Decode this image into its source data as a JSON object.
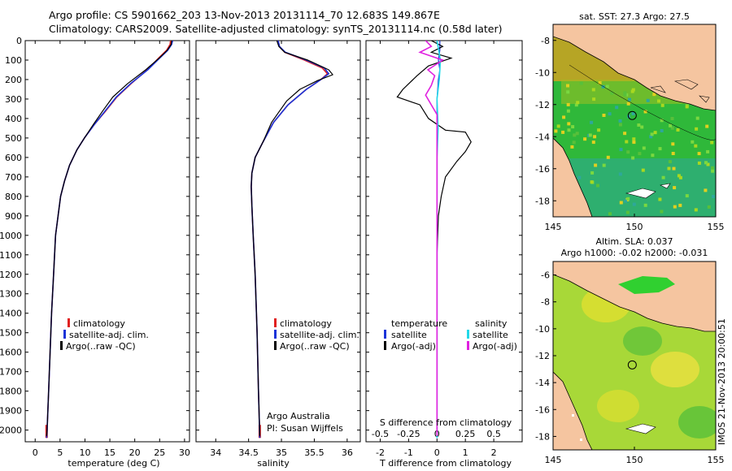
{
  "header": {
    "line1": "Argo profile: CS 5901662_203 13-Nov-2013 20131114_70 12.683S 149.867E",
    "line2": "Climatology: CARS2009. Satellite-adjusted climatology: synTS_20131114.nc (0.58d later)"
  },
  "side_label": "IMOS 21-Nov-2013 20:00:51",
  "colors": {
    "climatology": "#e02020",
    "satellite": "#1a33d8",
    "argo": "#000000",
    "sat_sal": "#22d8e8",
    "argo_sal": "#e020e0",
    "land": "#f5c5a0"
  },
  "chart_data": [
    {
      "id": "temperature",
      "type": "line",
      "xlabel": "temperature (deg C)",
      "ylabel": "",
      "xlim": [
        -2,
        31
      ],
      "ylim": [
        0,
        2060
      ],
      "xticks": [
        0,
        5,
        10,
        15,
        20,
        25,
        30
      ],
      "yticks": [
        0,
        100,
        200,
        300,
        400,
        500,
        600,
        700,
        800,
        900,
        1000,
        1100,
        1200,
        1300,
        1400,
        1500,
        1600,
        1700,
        1800,
        1900,
        2000
      ],
      "legend": [
        "climatology",
        "satellite-adj. clim.",
        "Argo(..raw -QC)"
      ],
      "series": [
        {
          "name": "climatology",
          "color": "#e02020",
          "points": [
            [
              27.2,
              0
            ],
            [
              27.1,
              20
            ],
            [
              26.4,
              50
            ],
            [
              24.8,
              90
            ],
            [
              22.5,
              150
            ],
            [
              19.3,
              220
            ],
            [
              16.4,
              290
            ],
            [
              14.2,
              360
            ],
            [
              11.9,
              430
            ],
            [
              9.9,
              500
            ],
            [
              8.4,
              560
            ],
            [
              6.9,
              640
            ],
            [
              5.9,
              720
            ],
            [
              5.1,
              800
            ],
            [
              4.6,
              900
            ],
            [
              4.1,
              1000
            ],
            [
              3.7,
              1200
            ],
            [
              3.3,
              1400
            ],
            [
              3.0,
              1600
            ],
            [
              2.7,
              1800
            ],
            [
              2.4,
              2000
            ],
            [
              2.3,
              2040
            ]
          ]
        },
        {
          "name": "satellite",
          "color": "#1a33d8",
          "points": [
            [
              27.6,
              0
            ],
            [
              27.4,
              20
            ],
            [
              26.6,
              50
            ],
            [
              25.0,
              90
            ],
            [
              22.6,
              150
            ],
            [
              19.2,
              220
            ],
            [
              16.3,
              290
            ],
            [
              14.1,
              360
            ],
            [
              11.9,
              430
            ],
            [
              9.9,
              500
            ],
            [
              8.4,
              560
            ],
            [
              6.9,
              640
            ],
            [
              5.9,
              720
            ],
            [
              5.1,
              800
            ],
            [
              4.6,
              900
            ],
            [
              4.1,
              1000
            ],
            [
              3.7,
              1200
            ],
            [
              3.3,
              1400
            ],
            [
              3.0,
              1600
            ],
            [
              2.7,
              1800
            ],
            [
              2.4,
              2000
            ],
            [
              2.3,
              2040
            ]
          ]
        },
        {
          "name": "Argo",
          "color": "#000000",
          "points": [
            [
              27.4,
              0
            ],
            [
              27.3,
              20
            ],
            [
              26.5,
              50
            ],
            [
              24.9,
              90
            ],
            [
              22.2,
              150
            ],
            [
              18.6,
              220
            ],
            [
              15.6,
              290
            ],
            [
              13.6,
              360
            ],
            [
              11.7,
              430
            ],
            [
              9.9,
              500
            ],
            [
              8.4,
              560
            ],
            [
              6.9,
              640
            ],
            [
              5.9,
              720
            ],
            [
              5.1,
              800
            ],
            [
              4.6,
              900
            ],
            [
              4.1,
              1000
            ],
            [
              3.7,
              1200
            ],
            [
              3.3,
              1400
            ],
            [
              3.0,
              1600
            ],
            [
              2.7,
              1800
            ],
            [
              2.4,
              2000
            ],
            [
              2.3,
              2030
            ]
          ]
        }
      ]
    },
    {
      "id": "salinity",
      "type": "line",
      "xlabel": "salinity",
      "xlim": [
        33.7,
        36.2
      ],
      "ylim": [
        0,
        2060
      ],
      "xticks": [
        34,
        34.5,
        35,
        35.5,
        36
      ],
      "legend": [
        "climatology",
        "satellite-adj. clim.",
        "Argo(..raw -QC)"
      ],
      "annotation": [
        "Argo Australia",
        "PI: Susan Wijffels"
      ],
      "series": [
        {
          "name": "climatology",
          "color": "#e02020",
          "points": [
            [
              34.95,
              0
            ],
            [
              34.97,
              30
            ],
            [
              35.05,
              60
            ],
            [
              35.35,
              100
            ],
            [
              35.62,
              140
            ],
            [
              35.7,
              170
            ],
            [
              35.6,
              200
            ],
            [
              35.38,
              250
            ],
            [
              35.1,
              330
            ],
            [
              34.88,
              420
            ],
            [
              34.72,
              520
            ],
            [
              34.6,
              600
            ],
            [
              34.55,
              680
            ],
            [
              34.54,
              750
            ],
            [
              34.55,
              850
            ],
            [
              34.57,
              1000
            ],
            [
              34.6,
              1200
            ],
            [
              34.63,
              1500
            ],
            [
              34.65,
              1800
            ],
            [
              34.67,
              2040
            ]
          ]
        },
        {
          "name": "satellite",
          "color": "#1a33d8",
          "points": [
            [
              34.95,
              0
            ],
            [
              34.97,
              30
            ],
            [
              35.06,
              60
            ],
            [
              35.38,
              100
            ],
            [
              35.65,
              140
            ],
            [
              35.72,
              170
            ],
            [
              35.6,
              200
            ],
            [
              35.38,
              250
            ],
            [
              35.1,
              330
            ],
            [
              34.88,
              420
            ],
            [
              34.72,
              520
            ],
            [
              34.6,
              600
            ],
            [
              34.55,
              680
            ],
            [
              34.54,
              750
            ],
            [
              34.55,
              850
            ],
            [
              34.57,
              1000
            ],
            [
              34.6,
              1200
            ],
            [
              34.63,
              1500
            ],
            [
              34.65,
              1800
            ],
            [
              34.67,
              2040
            ]
          ]
        },
        {
          "name": "Argo",
          "color": "#000000",
          "points": [
            [
              34.93,
              0
            ],
            [
              34.96,
              30
            ],
            [
              35.05,
              60
            ],
            [
              35.4,
              100
            ],
            [
              35.72,
              150
            ],
            [
              35.78,
              175
            ],
            [
              35.55,
              205
            ],
            [
              35.28,
              250
            ],
            [
              35.08,
              310
            ],
            [
              34.85,
              420
            ],
            [
              34.72,
              520
            ],
            [
              34.6,
              600
            ],
            [
              34.55,
              680
            ],
            [
              34.54,
              750
            ],
            [
              34.55,
              850
            ],
            [
              34.57,
              1000
            ],
            [
              34.6,
              1200
            ],
            [
              34.63,
              1500
            ],
            [
              34.65,
              1800
            ],
            [
              34.67,
              2030
            ]
          ]
        }
      ]
    },
    {
      "id": "difference",
      "type": "line",
      "xlabel": "T difference from climatology",
      "top_label": "S difference from climatology",
      "xlim": [
        -2.5,
        3.0
      ],
      "ylim": [
        0,
        2060
      ],
      "xticks": [
        -2,
        -1,
        0,
        1,
        2
      ],
      "sticks": [
        -0.5,
        -0.25,
        0,
        0.25,
        0.5
      ],
      "stick_labels": [
        "-0.5",
        "-0.25",
        "0",
        "0.25",
        "0.5"
      ],
      "legend_t": [
        "temperature",
        "satellite",
        "Argo(-adj)"
      ],
      "legend_s": [
        "salinity",
        "satellite",
        "Argo(-adj)"
      ],
      "series": [
        {
          "name": "T satellite",
          "color": "#1a33d8",
          "points": [
            [
              0.1,
              0
            ],
            [
              0.1,
              50
            ],
            [
              0.05,
              100
            ],
            [
              0.1,
              150
            ],
            [
              0.05,
              200
            ],
            [
              0.0,
              300
            ],
            [
              0.0,
              500
            ],
            [
              0.0,
              1000
            ],
            [
              0.0,
              2040
            ]
          ]
        },
        {
          "name": "T Argo",
          "color": "#000000",
          "points": [
            [
              -0.2,
              0
            ],
            [
              0.2,
              30
            ],
            [
              -0.2,
              60
            ],
            [
              0.5,
              90
            ],
            [
              -0.3,
              130
            ],
            [
              -0.7,
              180
            ],
            [
              -1.2,
              250
            ],
            [
              -1.4,
              290
            ],
            [
              -0.6,
              330
            ],
            [
              -0.3,
              400
            ],
            [
              0.3,
              460
            ],
            [
              1.0,
              470
            ],
            [
              1.2,
              520
            ],
            [
              1.0,
              570
            ],
            [
              0.7,
              620
            ],
            [
              0.3,
              700
            ],
            [
              0.15,
              800
            ],
            [
              0.05,
              900
            ],
            [
              0.0,
              1100
            ],
            [
              0.0,
              1500
            ],
            [
              0.0,
              2030
            ]
          ]
        },
        {
          "name": "S satellite",
          "color": "#22d8e8",
          "points": [
            [
              0.0,
              0
            ],
            [
              0.03,
              100
            ],
            [
              0.02,
              200
            ],
            [
              0.0,
              300
            ],
            [
              0.01,
              450
            ],
            [
              0.0,
              600
            ],
            [
              0.0,
              1000
            ],
            [
              0.0,
              2040
            ]
          ]
        },
        {
          "name": "S Argo",
          "color": "#e020e0",
          "points": [
            [
              -0.1,
              0
            ],
            [
              -0.05,
              30
            ],
            [
              -0.15,
              60
            ],
            [
              0.05,
              100
            ],
            [
              -0.08,
              150
            ],
            [
              -0.02,
              180
            ],
            [
              -0.05,
              230
            ],
            [
              -0.1,
              280
            ],
            [
              -0.05,
              330
            ],
            [
              0.0,
              380
            ],
            [
              0.0,
              600
            ],
            [
              0.0,
              1000
            ],
            [
              0.0,
              1500
            ],
            [
              0.0,
              2030
            ]
          ]
        }
      ]
    },
    {
      "id": "sst_map",
      "type": "heatmap",
      "title": "sat. SST: 27.3 Argo: 27.5",
      "xticks": [
        145,
        150,
        155
      ],
      "yticks": [
        -8,
        -10,
        -12,
        -14,
        -16,
        -18
      ],
      "xlim": [
        145,
        155
      ],
      "ylim": [
        -19,
        -7
      ],
      "float_position": [
        149.867,
        -12.683
      ]
    },
    {
      "id": "sla_map",
      "type": "heatmap",
      "title_line1": "Altim. SLA: 0.037",
      "title_line2": "Argo h1000: -0.02 h2000: -0.031",
      "xticks": [
        145,
        150,
        155
      ],
      "yticks": [
        -6,
        -8,
        -10,
        -12,
        -14,
        -16,
        -18
      ],
      "xlim": [
        145,
        155
      ],
      "ylim": [
        -19,
        -5
      ],
      "float_position": [
        149.867,
        -12.683
      ]
    }
  ]
}
